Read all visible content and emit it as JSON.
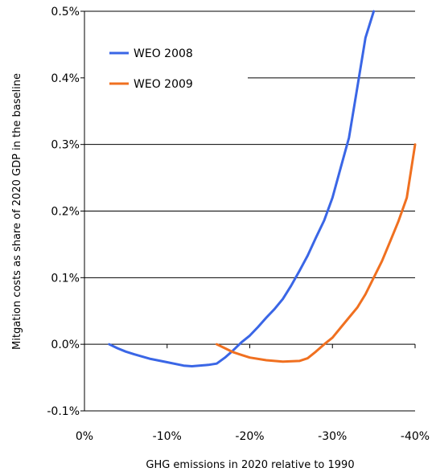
{
  "chart_data": {
    "type": "line",
    "title": "",
    "xlabel": "GHG emissions in 2020 relative to 1990",
    "ylabel": "Mitgation costs as share of 2020 GDP in the  baseline",
    "xlim": [
      0,
      -40
    ],
    "ylim": [
      -0.1,
      0.5
    ],
    "x_ticks": [
      {
        "value": 0,
        "label": "0%"
      },
      {
        "value": -10,
        "label": "-10%"
      },
      {
        "value": -20,
        "label": "-20%"
      },
      {
        "value": -30,
        "label": "-30%"
      },
      {
        "value": -40,
        "label": "-40%"
      }
    ],
    "y_ticks": [
      {
        "value": -0.1,
        "label": "-0.1%"
      },
      {
        "value": 0.0,
        "label": "0.0%"
      },
      {
        "value": 0.1,
        "label": "0.1%"
      },
      {
        "value": 0.2,
        "label": "0.2%"
      },
      {
        "value": 0.3,
        "label": "0.3%"
      },
      {
        "value": 0.4,
        "label": "0.4%"
      },
      {
        "value": 0.5,
        "label": "0.5%"
      }
    ],
    "grid": "horizontal",
    "legend_position": "top-left",
    "series": [
      {
        "name": "WEO 2008",
        "color": "#3a66e6",
        "points": [
          [
            -3,
            0.0
          ],
          [
            -4,
            -0.006
          ],
          [
            -5,
            -0.011
          ],
          [
            -6,
            -0.015
          ],
          [
            -8,
            -0.022
          ],
          [
            -10,
            -0.027
          ],
          [
            -12,
            -0.032
          ],
          [
            -13,
            -0.033
          ],
          [
            -15,
            -0.031
          ],
          [
            -16,
            -0.029
          ],
          [
            -17,
            -0.02
          ],
          [
            -18,
            -0.009
          ],
          [
            -19,
            0.003
          ],
          [
            -20,
            0.013
          ],
          [
            -21,
            0.026
          ],
          [
            -22,
            0.04
          ],
          [
            -23,
            0.053
          ],
          [
            -24,
            0.068
          ],
          [
            -25,
            0.088
          ],
          [
            -26,
            0.11
          ],
          [
            -27,
            0.133
          ],
          [
            -28,
            0.16
          ],
          [
            -29,
            0.186
          ],
          [
            -30,
            0.22
          ],
          [
            -31,
            0.265
          ],
          [
            -32,
            0.31
          ],
          [
            -33,
            0.385
          ],
          [
            -34,
            0.46
          ],
          [
            -35,
            0.5
          ]
        ]
      },
      {
        "name": "WEO 2009",
        "color": "#f07020",
        "points": [
          [
            -16,
            0.0
          ],
          [
            -17,
            -0.006
          ],
          [
            -18,
            -0.012
          ],
          [
            -19,
            -0.016
          ],
          [
            -20,
            -0.02
          ],
          [
            -22,
            -0.024
          ],
          [
            -24,
            -0.026
          ],
          [
            -26,
            -0.025
          ],
          [
            -27,
            -0.021
          ],
          [
            -28,
            -0.011
          ],
          [
            -29,
            0.0
          ],
          [
            -30,
            0.01
          ],
          [
            -31,
            0.025
          ],
          [
            -32,
            0.04
          ],
          [
            -33,
            0.055
          ],
          [
            -34,
            0.075
          ],
          [
            -35,
            0.1
          ],
          [
            -36,
            0.125
          ],
          [
            -37,
            0.155
          ],
          [
            -38,
            0.185
          ],
          [
            -39,
            0.22
          ],
          [
            -40,
            0.3
          ]
        ]
      }
    ]
  }
}
